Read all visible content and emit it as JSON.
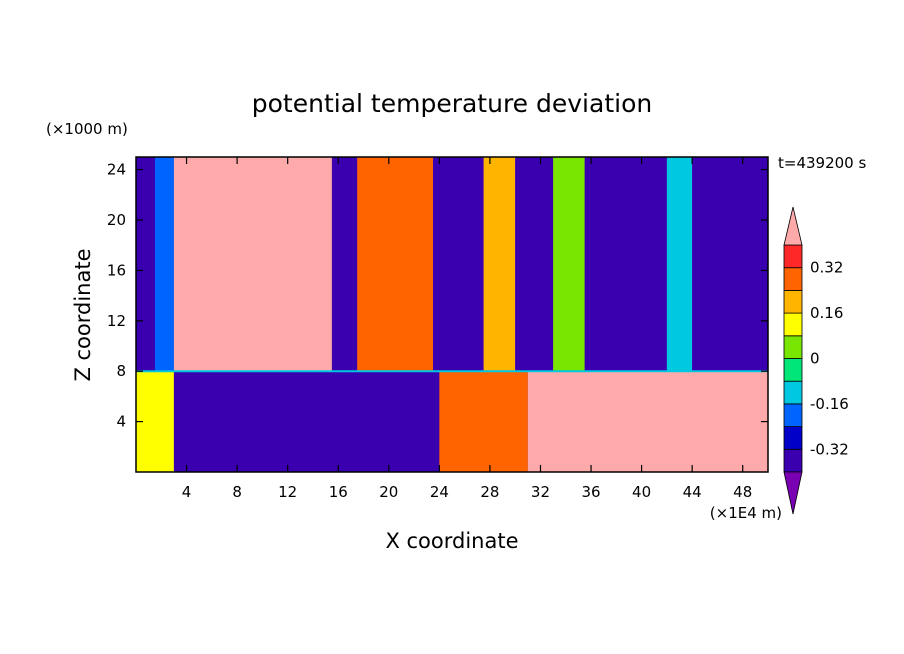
{
  "chart_data": {
    "type": "heatmap",
    "title": "potential temperature deviation",
    "xlabel": "X coordinate",
    "ylabel": "Z coordinate",
    "x_unit": "(×1E4 m)",
    "y_unit": "(×1000 m)",
    "time_label": "t=439200 s",
    "xlim": [
      0,
      50
    ],
    "ylim": [
      0,
      25
    ],
    "x_ticks": [
      4,
      8,
      12,
      16,
      20,
      24,
      28,
      32,
      36,
      40,
      44,
      48
    ],
    "y_ticks": [
      4,
      8,
      12,
      16,
      20,
      24
    ],
    "colorbar": {
      "levels": [
        -0.4,
        -0.32,
        -0.24,
        -0.16,
        -0.08,
        0,
        0.08,
        0.16,
        0.24,
        0.32,
        0.4
      ],
      "labeled_ticks": [
        "0.32",
        "0.16",
        "0",
        "-0.16",
        "-0.32"
      ],
      "colors": [
        "#7a00b4",
        "#3a00b0",
        "#0000c8",
        "#0064ff",
        "#00c8e0",
        "#00e678",
        "#78e600",
        "#ffff00",
        "#ffb400",
        "#ff6400",
        "#ff2828",
        "#ffaaaa"
      ],
      "extend": "both"
    },
    "boundary_layer_top_z": 8,
    "upper_field_columns": [
      {
        "x_start": 0,
        "x_end": 1.5,
        "level": -0.4
      },
      {
        "x_start": 1.5,
        "x_end": 3,
        "level": -0.24
      },
      {
        "x_start": 3,
        "x_end": 15.5,
        "level": 0.45
      },
      {
        "x_start": 15.5,
        "x_end": 17.5,
        "level": -0.4
      },
      {
        "x_start": 17.5,
        "x_end": 23.5,
        "level": 0.28
      },
      {
        "x_start": 23.5,
        "x_end": 27.5,
        "level": -0.4
      },
      {
        "x_start": 27.5,
        "x_end": 30,
        "level": 0.16
      },
      {
        "x_start": 30,
        "x_end": 33,
        "level": -0.4
      },
      {
        "x_start": 33,
        "x_end": 35.5,
        "level": 0.02
      },
      {
        "x_start": 35.5,
        "x_end": 42,
        "level": -0.4
      },
      {
        "x_start": 42,
        "x_end": 44,
        "level": -0.12
      },
      {
        "x_start": 44,
        "x_end": 50,
        "level": -0.4
      }
    ],
    "lower_field_columns": [
      {
        "x_start": 0,
        "x_end": 3,
        "level": 0.1
      },
      {
        "x_start": 3,
        "x_end": 24,
        "level": -0.4
      },
      {
        "x_start": 24,
        "x_end": 31,
        "level": 0.3
      },
      {
        "x_start": 31,
        "x_end": 50,
        "level": 0.45
      }
    ]
  }
}
